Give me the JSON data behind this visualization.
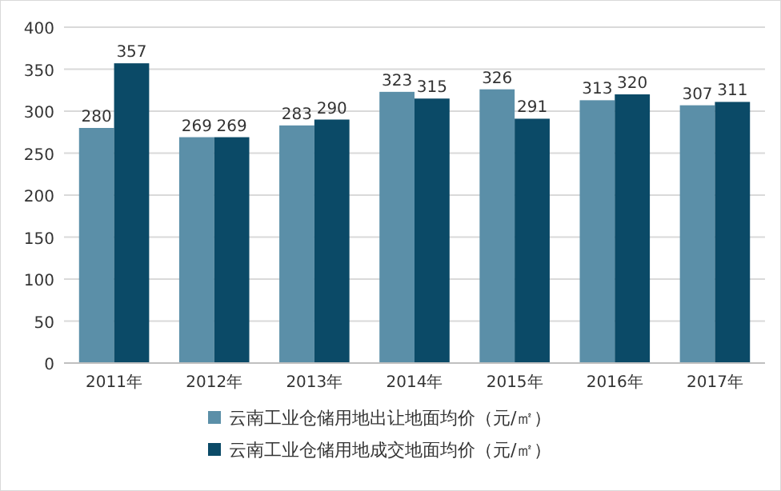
{
  "chart_data": {
    "type": "bar",
    "categories": [
      "2011年",
      "2012年",
      "2013年",
      "2014年",
      "2015年",
      "2016年",
      "2017年"
    ],
    "series": [
      {
        "name": "云南工业仓储用地出让地面均价（元/㎡）",
        "color": "#5b8fa8",
        "values": [
          280,
          269,
          283,
          323,
          326,
          313,
          307
        ]
      },
      {
        "name": "云南工业仓储用地成交地面均价（元/㎡）",
        "color": "#0b4a67",
        "values": [
          357,
          269,
          290,
          315,
          291,
          320,
          311
        ]
      }
    ],
    "ylim": [
      0,
      400
    ],
    "yticks": [
      0,
      50,
      100,
      150,
      200,
      250,
      300,
      350,
      400
    ],
    "grid": "y",
    "legend": "bottom",
    "data_labels": true
  }
}
